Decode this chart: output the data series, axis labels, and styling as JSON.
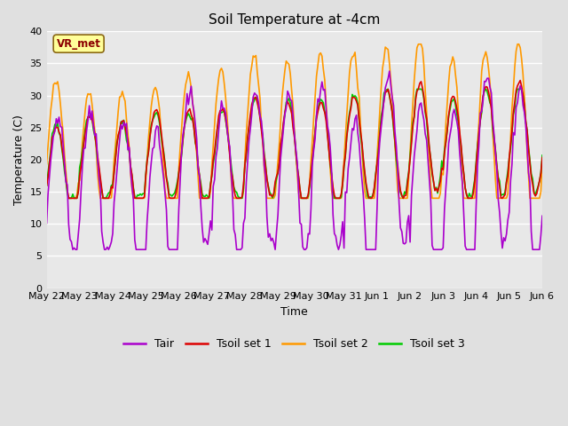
{
  "title": "Soil Temperature at -4cm",
  "xlabel": "Time",
  "ylabel": "Temperature (C)",
  "ylim": [
    0,
    40
  ],
  "yticks": [
    0,
    5,
    10,
    15,
    20,
    25,
    30,
    35,
    40
  ],
  "fig_facecolor": "#e0e0e0",
  "plot_facecolor": "#e8e8e8",
  "legend_labels": [
    "Tair",
    "Tsoil set 1",
    "Tsoil set 2",
    "Tsoil set 3"
  ],
  "legend_colors": [
    "#aa00cc",
    "#dd0000",
    "#ff9900",
    "#00cc00"
  ],
  "annotation_text": "VR_met",
  "annotation_color": "#8b0000",
  "annotation_bg": "#ffff99",
  "xtick_labels": [
    "May 22",
    "May 23",
    "May 24",
    "May 25",
    "May 26",
    "May 27",
    "May 28",
    "May 29",
    "May 30",
    "May 31",
    "Jun 1",
    "Jun 2",
    "Jun 3",
    "Jun 4",
    "Jun 5",
    "Jun 6"
  ],
  "line_width": 1.2
}
